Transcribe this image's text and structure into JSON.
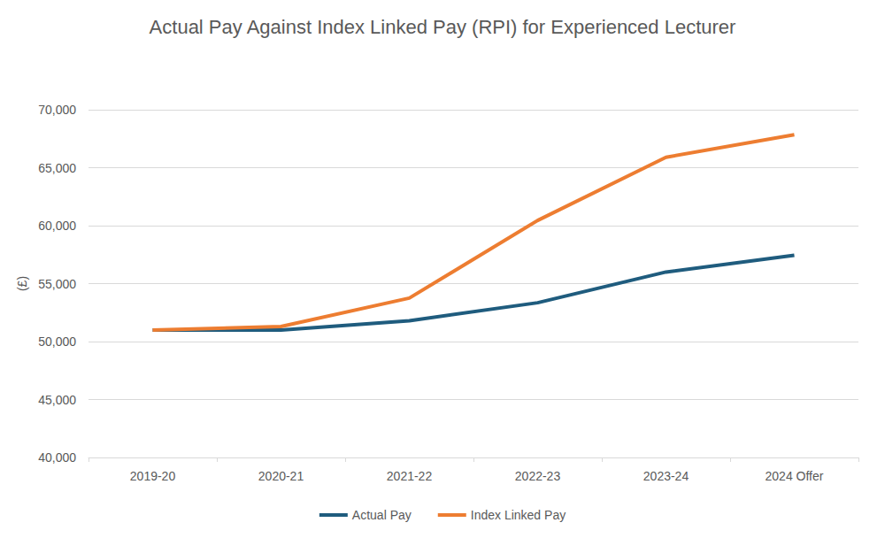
{
  "chart_data": {
    "type": "line",
    "title": "Actual Pay Against Index Linked Pay (RPI) for Experienced Lecturer",
    "y_label": "(£)",
    "categories": [
      "2019-20",
      "2020-21",
      "2021-22",
      "2022-23",
      "2023-24",
      "2024 Offer"
    ],
    "series": [
      {
        "name": "Actual Pay",
        "color": "#1f5c7e",
        "values": [
          51000,
          51000,
          51800,
          53350,
          56000,
          57450
        ]
      },
      {
        "name": "Index Linked Pay",
        "color": "#ed7d31",
        "values": [
          51000,
          51300,
          53750,
          60450,
          65900,
          67850
        ]
      }
    ],
    "ylim": [
      40000,
      70000
    ],
    "yticks": [
      {
        "value": 40000,
        "label": "40,000"
      },
      {
        "value": 45000,
        "label": "45,000"
      },
      {
        "value": 50000,
        "label": "50,000"
      },
      {
        "value": 55000,
        "label": "55,000"
      },
      {
        "value": 60000,
        "label": "60,000"
      },
      {
        "value": 65000,
        "label": "65,000"
      },
      {
        "value": 70000,
        "label": "70,000"
      }
    ],
    "grid": true,
    "legend": "bottom"
  }
}
